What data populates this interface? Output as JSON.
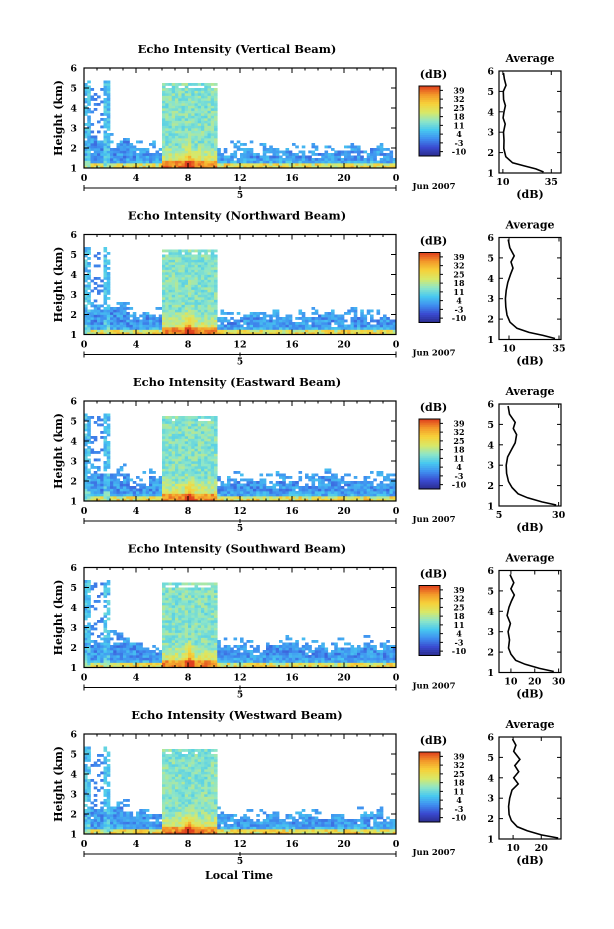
{
  "figure": {
    "xlabel": "Local Time",
    "colorbar_unit": "(dB)",
    "colorbar_ticks": [
      "39",
      "32",
      "25",
      "18",
      "11",
      "4",
      "-3",
      "-10"
    ],
    "date_label": "Jun 2007",
    "day_label": "5",
    "avg_title": "Average",
    "avg_xlabel": "(dB)"
  },
  "colors": {
    "palette": [
      "#2a2a8a",
      "#3a4ad0",
      "#3f8ff0",
      "#48c8f0",
      "#8ee6c8",
      "#d8e868",
      "#f6d23a",
      "#f39a2a",
      "#e0401e"
    ]
  },
  "chart_data": [
    {
      "type": "heatmap",
      "title": "Echo Intensity (Vertical Beam)",
      "ylabel": "Height (km)",
      "xlim": [
        0,
        24
      ],
      "ylim": [
        1,
        6
      ],
      "xticks": [
        "0",
        "4",
        "8",
        "12",
        "16",
        "20",
        "0"
      ],
      "yticks": [
        "1",
        "2",
        "3",
        "4",
        "5",
        "6"
      ],
      "clim": [
        -10,
        39
      ],
      "avg": {
        "xticks": [
          "10",
          "35"
        ],
        "xtick_values": [
          10,
          35
        ],
        "xlim": [
          8,
          40
        ],
        "profile": [
          [
            31,
            1.05
          ],
          [
            27,
            1.2
          ],
          [
            21,
            1.35
          ],
          [
            15,
            1.5
          ],
          [
            11.5,
            1.8
          ],
          [
            10.5,
            2.2
          ],
          [
            10.6,
            2.6
          ],
          [
            10.3,
            3.0
          ],
          [
            11.2,
            3.4
          ],
          [
            10.1,
            3.7
          ],
          [
            10.6,
            4.0
          ],
          [
            11.3,
            4.3
          ],
          [
            10.4,
            4.6
          ],
          [
            10.2,
            5.0
          ],
          [
            11.6,
            5.3
          ],
          [
            10.8,
            5.6
          ],
          [
            10.3,
            5.9
          ]
        ]
      }
    },
    {
      "type": "heatmap",
      "title": "Echo Intensity (Northward Beam)",
      "ylabel": "Height (km)",
      "xlim": [
        0,
        24
      ],
      "ylim": [
        1,
        6
      ],
      "xticks": [
        "0",
        "4",
        "8",
        "12",
        "16",
        "20",
        "0"
      ],
      "yticks": [
        "1",
        "2",
        "3",
        "4",
        "5",
        "6"
      ],
      "clim": [
        -10,
        39
      ],
      "avg": {
        "xticks": [
          "10",
          "35"
        ],
        "xtick_values": [
          10,
          35
        ],
        "xlim": [
          5,
          36
        ],
        "profile": [
          [
            33,
            1.05
          ],
          [
            27,
            1.2
          ],
          [
            20,
            1.35
          ],
          [
            14,
            1.55
          ],
          [
            10.5,
            1.85
          ],
          [
            9,
            2.2
          ],
          [
            8.4,
            2.6
          ],
          [
            8.2,
            3.0
          ],
          [
            8.6,
            3.4
          ],
          [
            9.4,
            3.8
          ],
          [
            10.8,
            4.2
          ],
          [
            12,
            4.5
          ],
          [
            11,
            4.8
          ],
          [
            12.6,
            5.1
          ],
          [
            10.4,
            5.5
          ],
          [
            9.6,
            5.9
          ]
        ]
      }
    },
    {
      "type": "heatmap",
      "title": "Echo Intensity (Eastward Beam)",
      "ylabel": "Height (km)",
      "xlim": [
        0,
        24
      ],
      "ylim": [
        1,
        6
      ],
      "xticks": [
        "0",
        "4",
        "8",
        "12",
        "16",
        "20",
        "0"
      ],
      "yticks": [
        "1",
        "2",
        "3",
        "4",
        "5",
        "6"
      ],
      "clim": [
        -10,
        39
      ],
      "avg": {
        "xticks": [
          "5",
          "30"
        ],
        "xtick_values": [
          5,
          30
        ],
        "xlim": [
          5,
          31
        ],
        "profile": [
          [
            29,
            1.05
          ],
          [
            23,
            1.2
          ],
          [
            17,
            1.4
          ],
          [
            13,
            1.6
          ],
          [
            10.5,
            1.9
          ],
          [
            9,
            2.2
          ],
          [
            8.2,
            2.6
          ],
          [
            8,
            3.0
          ],
          [
            8.6,
            3.4
          ],
          [
            10.4,
            3.8
          ],
          [
            11.8,
            4.1
          ],
          [
            12.4,
            4.5
          ],
          [
            11,
            4.8
          ],
          [
            11.8,
            5.1
          ],
          [
            9.4,
            5.5
          ],
          [
            8.8,
            5.9
          ]
        ]
      }
    },
    {
      "type": "heatmap",
      "title": "Echo Intensity (Southward Beam)",
      "ylabel": "Height (km)",
      "xlim": [
        0,
        24
      ],
      "ylim": [
        1,
        6
      ],
      "xticks": [
        "0",
        "4",
        "8",
        "12",
        "16",
        "20",
        "0"
      ],
      "yticks": [
        "1",
        "2",
        "3",
        "4",
        "5",
        "6"
      ],
      "clim": [
        -10,
        39
      ],
      "avg": {
        "xticks": [
          "10",
          "20",
          "30"
        ],
        "xtick_values": [
          10,
          20,
          30
        ],
        "xlim": [
          5,
          31
        ],
        "profile": [
          [
            28,
            1.05
          ],
          [
            22,
            1.2
          ],
          [
            16,
            1.4
          ],
          [
            12,
            1.6
          ],
          [
            10,
            1.9
          ],
          [
            9,
            2.2
          ],
          [
            9.4,
            2.6
          ],
          [
            8.8,
            3.0
          ],
          [
            9.8,
            3.4
          ],
          [
            8.4,
            3.8
          ],
          [
            9.2,
            4.2
          ],
          [
            10.2,
            4.5
          ],
          [
            11.4,
            4.8
          ],
          [
            10,
            5.1
          ],
          [
            11.2,
            5.4
          ],
          [
            9.6,
            5.8
          ]
        ]
      }
    },
    {
      "type": "heatmap",
      "title": "Echo Intensity (Westward Beam)",
      "ylabel": "Height (km)",
      "xlim": [
        0,
        24
      ],
      "ylim": [
        1,
        6
      ],
      "xticks": [
        "0",
        "4",
        "8",
        "12",
        "16",
        "20",
        "0"
      ],
      "yticks": [
        "1",
        "2",
        "3",
        "4",
        "5",
        "6"
      ],
      "clim": [
        -10,
        39
      ],
      "avg": {
        "xticks": [
          "10",
          "20"
        ],
        "xtick_values": [
          10,
          20
        ],
        "xlim": [
          5,
          27
        ],
        "profile": [
          [
            26,
            1.05
          ],
          [
            20,
            1.2
          ],
          [
            15,
            1.4
          ],
          [
            11.5,
            1.6
          ],
          [
            9.4,
            1.9
          ],
          [
            8.6,
            2.2
          ],
          [
            8.4,
            2.6
          ],
          [
            8.8,
            3.0
          ],
          [
            9.6,
            3.4
          ],
          [
            11.8,
            3.7
          ],
          [
            10.2,
            4.0
          ],
          [
            12,
            4.3
          ],
          [
            10.6,
            4.6
          ],
          [
            12.4,
            4.9
          ],
          [
            10.2,
            5.3
          ],
          [
            11,
            5.6
          ],
          [
            9.8,
            5.9
          ]
        ]
      }
    }
  ]
}
